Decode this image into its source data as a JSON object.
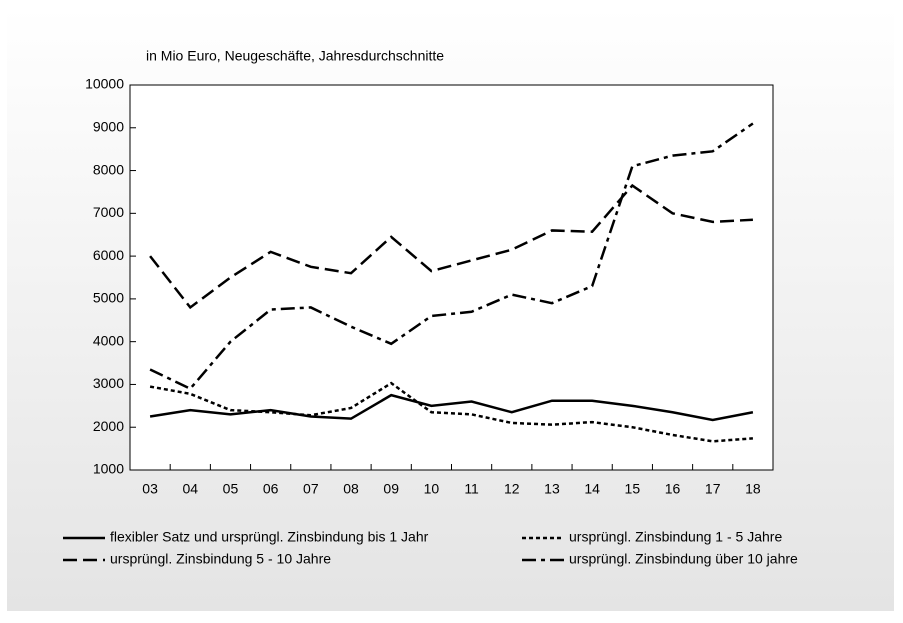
{
  "chart_data": {
    "type": "line",
    "subtitle": "in Mio Euro, Neugeschäfte, Jahresdurchschnitte",
    "categories": [
      "03",
      "04",
      "05",
      "06",
      "07",
      "08",
      "09",
      "10",
      "11",
      "12",
      "13",
      "14",
      "15",
      "16",
      "17",
      "18"
    ],
    "ylim": [
      1000,
      10000
    ],
    "yticks": [
      1000,
      2000,
      3000,
      4000,
      5000,
      6000,
      7000,
      8000,
      9000,
      10000
    ],
    "series": [
      {
        "name": "flexibler Satz und ursprüngl. Zinsbindung bis 1 Jahr",
        "color": "#000000",
        "dash": "solid",
        "values": [
          2250,
          2400,
          2300,
          2400,
          2250,
          2200,
          2750,
          2500,
          2600,
          2350,
          2620,
          2620,
          2500,
          2350,
          2170,
          2350
        ]
      },
      {
        "name": "ursprüngl. Zinsbindung 1 - 5 Jahre",
        "color": "#000000",
        "dash": "dotted",
        "values": [
          2950,
          2780,
          2400,
          2350,
          2280,
          2450,
          3030,
          2350,
          2300,
          2100,
          2060,
          2120,
          2000,
          1820,
          1670,
          1740
        ]
      },
      {
        "name": "ursprüngl.  Zinsbindung 5 - 10 Jahre",
        "color": "#000000",
        "dash": "dashed",
        "values": [
          6000,
          4800,
          5500,
          6100,
          5750,
          5600,
          6450,
          5650,
          5900,
          6150,
          6600,
          6570,
          7650,
          7000,
          6800,
          6850
        ]
      },
      {
        "name": "ursprüngl. Zinsbindung über 10 jahre",
        "color": "#000000",
        "dash": "dashdot",
        "values": [
          3350,
          2900,
          4000,
          4750,
          4800,
          4350,
          3950,
          4600,
          4700,
          5100,
          4900,
          5300,
          8100,
          8350,
          8450,
          9100
        ]
      }
    ]
  }
}
